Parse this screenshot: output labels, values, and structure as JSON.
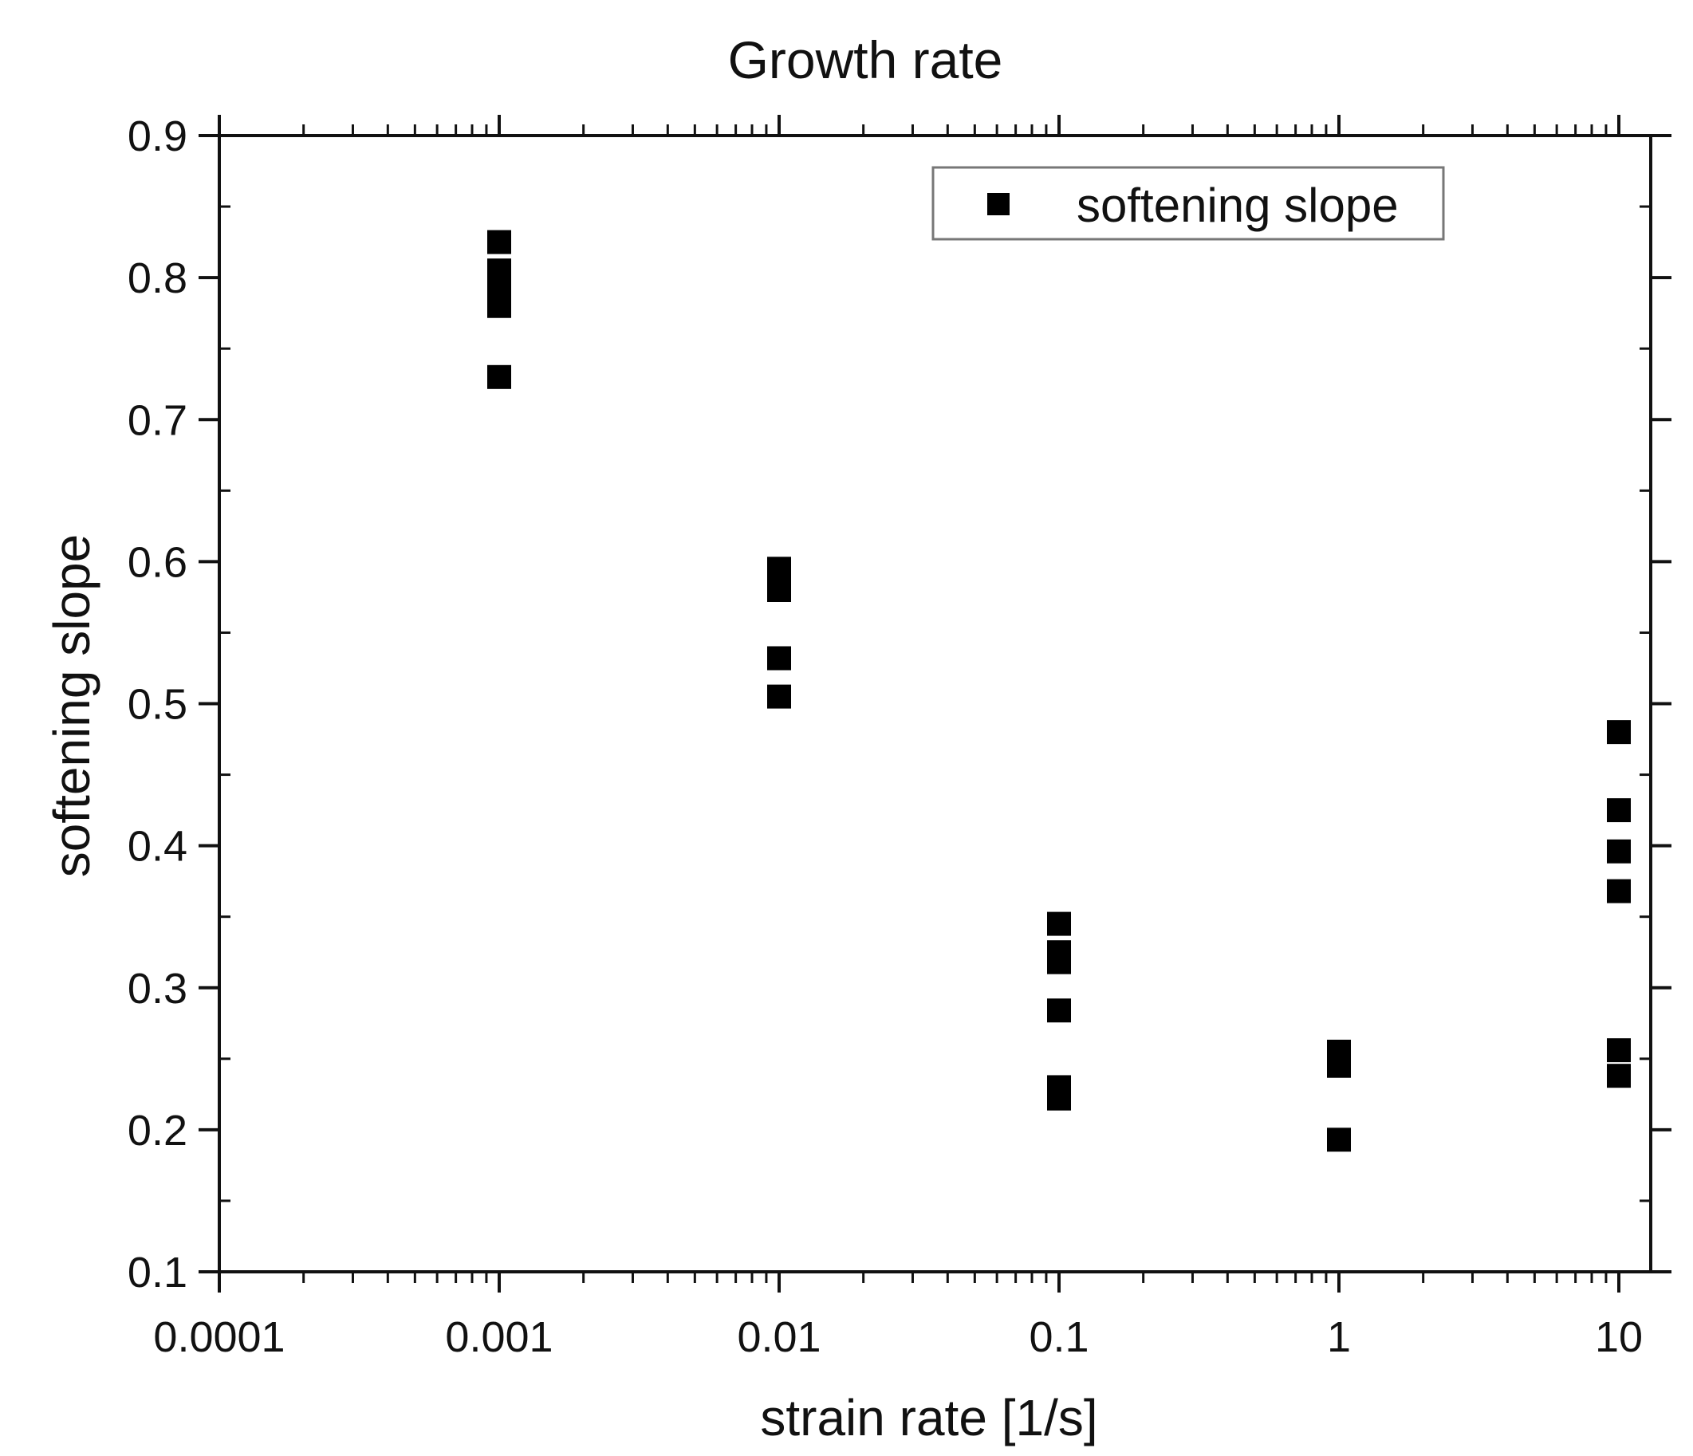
{
  "chart_data": {
    "type": "scatter",
    "title": "Growth rate",
    "xlabel": "strain rate [1/s]",
    "ylabel": "softening slope",
    "xscale": "log",
    "xlim": [
      0.0001,
      13
    ],
    "ylim": [
      0.1,
      0.9
    ],
    "xticks": [
      0.0001,
      0.001,
      0.01,
      0.1,
      1,
      10
    ],
    "xtick_labels": [
      "0.0001",
      "0.001",
      "0.01",
      "0.1",
      "1",
      "10"
    ],
    "yticks": [
      0.1,
      0.2,
      0.3,
      0.4,
      0.5,
      0.6,
      0.7,
      0.8,
      0.9
    ],
    "ytick_labels": [
      "0.1",
      "0.2",
      "0.3",
      "0.4",
      "0.5",
      "0.6",
      "0.7",
      "0.8",
      "0.9"
    ],
    "grid": false,
    "legend_position": "top-right",
    "series": [
      {
        "name": "softening slope",
        "marker": "square",
        "color": "#000000",
        "points": [
          {
            "x": 0.001,
            "y": 0.825
          },
          {
            "x": 0.001,
            "y": 0.805
          },
          {
            "x": 0.001,
            "y": 0.795
          },
          {
            "x": 0.001,
            "y": 0.78
          },
          {
            "x": 0.001,
            "y": 0.73
          },
          {
            "x": 0.01,
            "y": 0.595
          },
          {
            "x": 0.01,
            "y": 0.58
          },
          {
            "x": 0.01,
            "y": 0.532
          },
          {
            "x": 0.01,
            "y": 0.505
          },
          {
            "x": 0.1,
            "y": 0.345
          },
          {
            "x": 0.1,
            "y": 0.325
          },
          {
            "x": 0.1,
            "y": 0.318
          },
          {
            "x": 0.1,
            "y": 0.284
          },
          {
            "x": 0.1,
            "y": 0.23
          },
          {
            "x": 0.1,
            "y": 0.222
          },
          {
            "x": 1,
            "y": 0.255
          },
          {
            "x": 1,
            "y": 0.245
          },
          {
            "x": 1,
            "y": 0.193
          },
          {
            "x": 10,
            "y": 0.48
          },
          {
            "x": 10,
            "y": 0.425
          },
          {
            "x": 10,
            "y": 0.396
          },
          {
            "x": 10,
            "y": 0.368
          },
          {
            "x": 10,
            "y": 0.256
          },
          {
            "x": 10,
            "y": 0.238
          }
        ]
      }
    ]
  }
}
